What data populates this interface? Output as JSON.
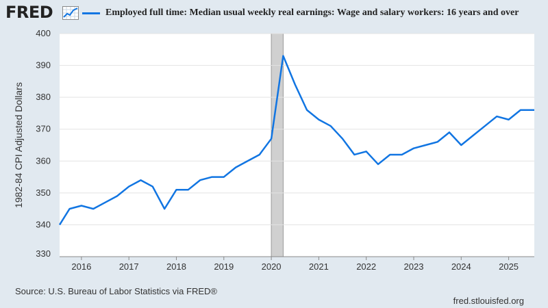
{
  "header": {
    "logo_text": "FRED",
    "logo_icon": "line-chart-icon"
  },
  "chart_data": {
    "type": "line",
    "title": "",
    "xlabel": "",
    "ylabel": "1982-84 CPI Adjusted Dollars",
    "xlim": [
      2015.54,
      2025.54
    ],
    "ylim": [
      330,
      400
    ],
    "yticks": [
      330,
      340,
      350,
      360,
      370,
      380,
      390,
      400
    ],
    "xticks": [
      "2016",
      "2017",
      "2018",
      "2019",
      "2020",
      "2021",
      "2022",
      "2023",
      "2024",
      "2025"
    ],
    "xtick_values": [
      2016,
      2017,
      2018,
      2019,
      2020,
      2021,
      2022,
      2023,
      2024,
      2025
    ],
    "grid": true,
    "legend_position": "top",
    "recession_band": [
      2020.0,
      2020.25
    ],
    "series": [
      {
        "name": "Employed full time: Median usual weekly real earnings: Wage and salary workers: 16 years and over",
        "color": "#1175e2",
        "x": [
          2015.54,
          2015.75,
          2016.0,
          2016.25,
          2016.5,
          2016.75,
          2017.0,
          2017.25,
          2017.5,
          2017.75,
          2018.0,
          2018.25,
          2018.5,
          2018.75,
          2019.0,
          2019.25,
          2019.5,
          2019.75,
          2020.0,
          2020.25,
          2020.5,
          2020.75,
          2021.0,
          2021.25,
          2021.5,
          2021.75,
          2022.0,
          2022.25,
          2022.5,
          2022.75,
          2023.0,
          2023.25,
          2023.5,
          2023.75,
          2024.0,
          2024.25,
          2024.5,
          2024.75,
          2025.0,
          2025.25,
          2025.54
        ],
        "values": [
          340,
          345,
          346,
          345,
          347,
          349,
          352,
          354,
          352,
          345,
          351,
          351,
          354,
          355,
          355,
          358,
          360,
          362,
          367,
          393,
          384,
          376,
          373,
          371,
          367,
          362,
          363,
          359,
          362,
          362,
          364,
          365,
          366,
          369,
          365,
          368,
          371,
          374,
          373,
          376,
          376
        ]
      }
    ]
  },
  "footer": {
    "source": "Source: U.S. Bureau of Labor Statistics via FRED®",
    "site": "fred.stlouisfed.org"
  }
}
